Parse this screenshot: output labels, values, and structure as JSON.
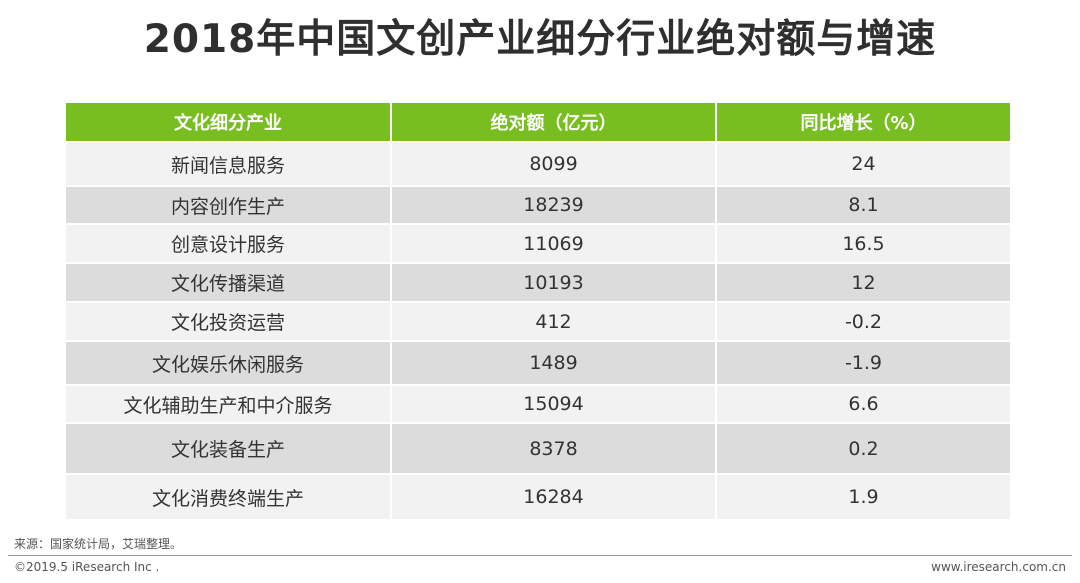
{
  "title": "2018年中国文创产业细分行业绝对额与增速",
  "chart_data": {
    "type": "table",
    "title": "2018年中国文创产业细分行业绝对额与增速",
    "columns": [
      "文化细分产业",
      "绝对额（亿元）",
      "同比增长（%）"
    ],
    "rows": [
      [
        "新闻信息服务",
        "8099",
        "24"
      ],
      [
        "内容创作生产",
        "18239",
        "8.1"
      ],
      [
        "创意设计服务",
        "11069",
        "16.5"
      ],
      [
        "文化传播渠道",
        "10193",
        "12"
      ],
      [
        "文化投资运营",
        "412",
        "-0.2"
      ],
      [
        "文化娱乐休闲服务",
        "1489",
        "-1.9"
      ],
      [
        "文化辅助生产和中介服务",
        "15094",
        "6.6"
      ],
      [
        "文化装备生产",
        "8378",
        "0.2"
      ],
      [
        "文化消费终端生产",
        "16284",
        "1.9"
      ]
    ]
  },
  "colors": {
    "header_bg": "#78be20",
    "row_light": "#f2f2f2",
    "row_dark": "#dcdcdc"
  },
  "footer": {
    "source": "来源：国家统计局，艾瑞整理。",
    "copyright": "©2019.5 iResearch Inc .",
    "website": "www.iresearch.com.cn"
  }
}
